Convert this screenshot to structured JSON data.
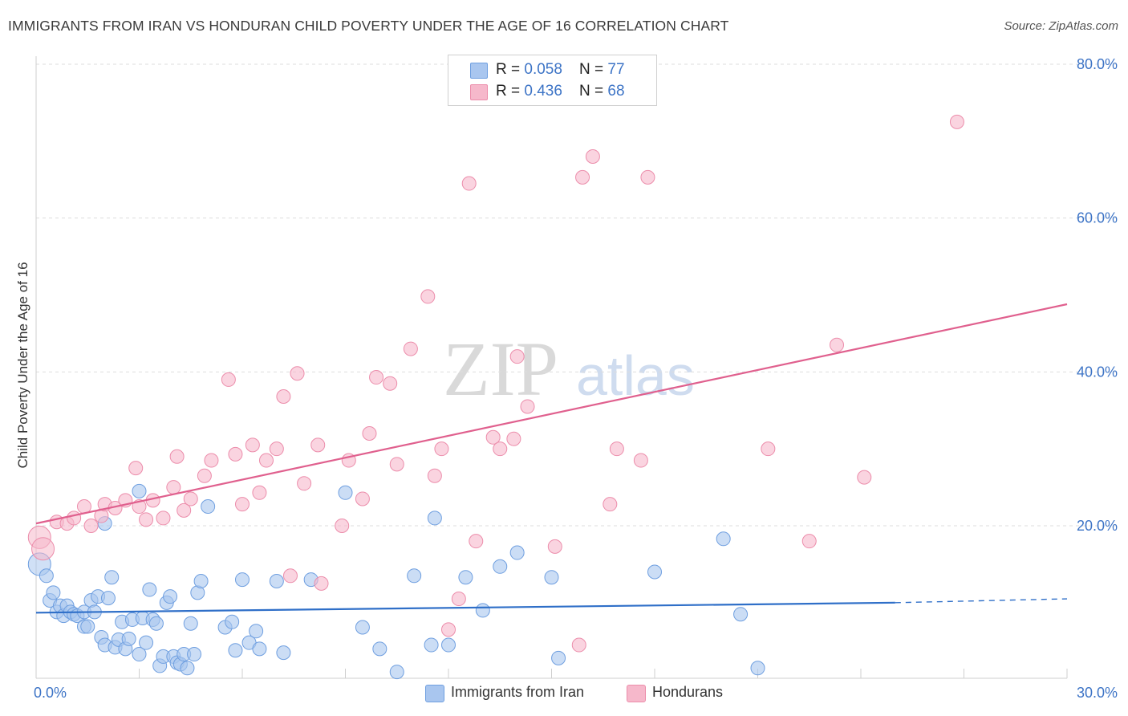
{
  "title": "IMMIGRANTS FROM IRAN VS HONDURAN CHILD POVERTY UNDER THE AGE OF 16 CORRELATION CHART",
  "source": "Source: ZipAtlas.com",
  "watermark": {
    "zip": "ZIP",
    "atlas": "atlas"
  },
  "legend": {
    "iran": {
      "r_label": "R = ",
      "r_value": "0.058",
      "n_label": "N = ",
      "n_value": "77"
    },
    "honduran": {
      "r_label": "R = ",
      "r_value": "0.436",
      "n_label": "N = ",
      "n_value": "68"
    }
  },
  "series_labels": {
    "iran": "Immigrants from Iran",
    "honduran": "Hondurans"
  },
  "colors": {
    "iran_fill": "#a9c6ef",
    "iran_stroke": "#6f9fe0",
    "iran_line": "#2f6fc8",
    "hond_fill": "#f6b8cb",
    "hond_stroke": "#ec8dab",
    "hond_line": "#e0608e",
    "axis_label": "#3d74c6",
    "grid": "#dddddd"
  },
  "chart_data": {
    "type": "scatter",
    "title": "IMMIGRANTS FROM IRAN VS HONDURAN CHILD POVERTY UNDER THE AGE OF 16 CORRELATION CHART",
    "xlabel": "",
    "ylabel": "Child Poverty Under the Age of 16",
    "xlim": [
      0,
      30
    ],
    "ylim": [
      0,
      82
    ],
    "x_tick_labels": [
      {
        "value": 0,
        "label": "0.0%"
      },
      {
        "value": 30,
        "label": "30.0%"
      }
    ],
    "y_tick_labels": [
      {
        "value": 20,
        "label": "20.0%"
      },
      {
        "value": 40,
        "label": "40.0%"
      },
      {
        "value": 60,
        "label": "60.0%"
      },
      {
        "value": 80,
        "label": "80.0%"
      }
    ],
    "y_gridlines": [
      20,
      40,
      60,
      80
    ],
    "series": [
      {
        "name": "Immigrants from Iran",
        "r": 0.058,
        "n": 77,
        "trend": {
          "x0": 0,
          "y0": 8.7,
          "x1": 25.0,
          "y1": 10.0,
          "dash_to_x": 30,
          "dash_to_y": 10.5
        },
        "points": [
          [
            0.1,
            15.0
          ],
          [
            0.3,
            13.5
          ],
          [
            0.4,
            10.3
          ],
          [
            0.5,
            11.3
          ],
          [
            0.6,
            8.8
          ],
          [
            0.7,
            9.6
          ],
          [
            0.8,
            8.3
          ],
          [
            0.9,
            9.6
          ],
          [
            1.0,
            8.8
          ],
          [
            1.1,
            8.5
          ],
          [
            1.2,
            8.3
          ],
          [
            1.4,
            8.8
          ],
          [
            1.4,
            6.9
          ],
          [
            1.5,
            6.9
          ],
          [
            1.6,
            10.3
          ],
          [
            1.7,
            8.8
          ],
          [
            1.8,
            10.8
          ],
          [
            1.9,
            5.5
          ],
          [
            2.0,
            4.5
          ],
          [
            2.1,
            10.6
          ],
          [
            2.2,
            13.3
          ],
          [
            2.3,
            4.2
          ],
          [
            2.4,
            5.2
          ],
          [
            2.5,
            7.5
          ],
          [
            2.6,
            4.0
          ],
          [
            2.7,
            5.3
          ],
          [
            2.8,
            7.8
          ],
          [
            3.0,
            3.3
          ],
          [
            3.1,
            8.0
          ],
          [
            3.2,
            4.8
          ],
          [
            3.3,
            11.7
          ],
          [
            3.4,
            7.8
          ],
          [
            3.5,
            7.3
          ],
          [
            3.6,
            1.8
          ],
          [
            3.7,
            3.0
          ],
          [
            3.8,
            10.0
          ],
          [
            3.9,
            10.8
          ],
          [
            4.0,
            3.0
          ],
          [
            4.1,
            2.2
          ],
          [
            4.2,
            2.0
          ],
          [
            4.3,
            3.3
          ],
          [
            4.4,
            1.5
          ],
          [
            4.5,
            7.3
          ],
          [
            4.6,
            3.3
          ],
          [
            4.7,
            11.3
          ],
          [
            4.8,
            12.8
          ],
          [
            3.0,
            24.5
          ],
          [
            2.0,
            20.3
          ],
          [
            5.0,
            22.5
          ],
          [
            5.5,
            6.8
          ],
          [
            5.7,
            7.5
          ],
          [
            5.8,
            3.8
          ],
          [
            6.2,
            4.8
          ],
          [
            6.4,
            6.3
          ],
          [
            6.5,
            4.0
          ],
          [
            7.0,
            12.8
          ],
          [
            7.2,
            3.5
          ],
          [
            8.0,
            13.0
          ],
          [
            9.0,
            24.3
          ],
          [
            9.5,
            6.8
          ],
          [
            10.0,
            4.0
          ],
          [
            10.5,
            1.0
          ],
          [
            11.0,
            13.5
          ],
          [
            11.5,
            4.5
          ],
          [
            11.6,
            21.0
          ],
          [
            12.0,
            4.5
          ],
          [
            12.5,
            13.3
          ],
          [
            13.0,
            9.0
          ],
          [
            13.5,
            14.7
          ],
          [
            14.0,
            16.5
          ],
          [
            15.0,
            13.3
          ],
          [
            15.2,
            2.8
          ],
          [
            18.0,
            14.0
          ],
          [
            20.0,
            18.3
          ],
          [
            20.5,
            8.5
          ],
          [
            21.0,
            1.5
          ],
          [
            6.0,
            13.0
          ]
        ]
      },
      {
        "name": "Hondurans",
        "r": 0.436,
        "n": 68,
        "trend": {
          "x0": 0,
          "y0": 20.3,
          "x1": 30,
          "y1": 48.8
        },
        "points": [
          [
            0.1,
            18.5
          ],
          [
            0.2,
            17.0
          ],
          [
            0.6,
            20.5
          ],
          [
            0.9,
            20.3
          ],
          [
            1.1,
            21.0
          ],
          [
            1.4,
            22.5
          ],
          [
            1.6,
            20.0
          ],
          [
            1.9,
            21.3
          ],
          [
            2.0,
            22.8
          ],
          [
            2.3,
            22.3
          ],
          [
            2.6,
            23.3
          ],
          [
            2.9,
            27.5
          ],
          [
            3.0,
            22.5
          ],
          [
            3.2,
            20.8
          ],
          [
            3.4,
            23.3
          ],
          [
            3.7,
            21.0
          ],
          [
            4.0,
            25.0
          ],
          [
            4.1,
            29.0
          ],
          [
            4.3,
            22.0
          ],
          [
            4.5,
            23.5
          ],
          [
            4.9,
            26.5
          ],
          [
            5.1,
            28.5
          ],
          [
            5.6,
            39.0
          ],
          [
            5.8,
            29.3
          ],
          [
            6.0,
            22.8
          ],
          [
            6.3,
            30.5
          ],
          [
            6.5,
            24.3
          ],
          [
            6.7,
            28.5
          ],
          [
            7.0,
            30.0
          ],
          [
            7.2,
            36.8
          ],
          [
            7.4,
            13.5
          ],
          [
            7.6,
            39.8
          ],
          [
            7.8,
            25.5
          ],
          [
            8.2,
            30.5
          ],
          [
            8.3,
            12.5
          ],
          [
            8.9,
            20.0
          ],
          [
            9.1,
            28.5
          ],
          [
            9.5,
            23.5
          ],
          [
            9.7,
            32.0
          ],
          [
            9.9,
            39.3
          ],
          [
            10.3,
            38.5
          ],
          [
            10.5,
            28.0
          ],
          [
            10.9,
            43.0
          ],
          [
            11.4,
            49.8
          ],
          [
            11.6,
            26.5
          ],
          [
            11.8,
            30.0
          ],
          [
            12.0,
            6.5
          ],
          [
            12.3,
            10.5
          ],
          [
            12.6,
            64.5
          ],
          [
            12.8,
            18.0
          ],
          [
            13.3,
            31.5
          ],
          [
            13.5,
            30.0
          ],
          [
            13.9,
            31.3
          ],
          [
            14.0,
            42.0
          ],
          [
            14.3,
            35.5
          ],
          [
            15.1,
            17.3
          ],
          [
            15.8,
            4.5
          ],
          [
            15.9,
            65.3
          ],
          [
            16.2,
            68.0
          ],
          [
            16.7,
            22.8
          ],
          [
            16.9,
            30.0
          ],
          [
            17.6,
            28.5
          ],
          [
            17.8,
            65.3
          ],
          [
            21.3,
            30.0
          ],
          [
            22.5,
            18.0
          ],
          [
            23.3,
            43.5
          ],
          [
            24.1,
            26.3
          ],
          [
            26.8,
            72.5
          ]
        ]
      }
    ]
  }
}
